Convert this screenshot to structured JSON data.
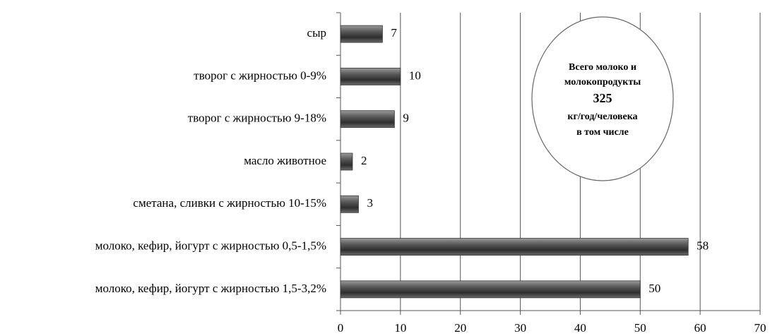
{
  "chart_data": {
    "type": "barh",
    "categories": [
      "сыр",
      "творог с жирностью 0-9%",
      "творог с жирностью 9-18%",
      "масло животное",
      "сметана, сливки с жирностью 10-15%",
      "молоко, кефир,  йогурт с жирностью 0,5-1,5%",
      "молоко, кефир,  йогурт с жирностью 1,5-3,2%"
    ],
    "values": [
      7,
      10,
      9,
      2,
      3,
      58,
      50
    ],
    "color": "#4a4a4a",
    "xlim": [
      0,
      70
    ],
    "xticks": [
      0,
      10,
      20,
      30,
      40,
      50,
      60,
      70
    ],
    "grid": true,
    "annotation": [
      "Всего молоко и",
      "молокопродукты",
      "325",
      "кг/год/человека",
      "в том числе"
    ]
  }
}
